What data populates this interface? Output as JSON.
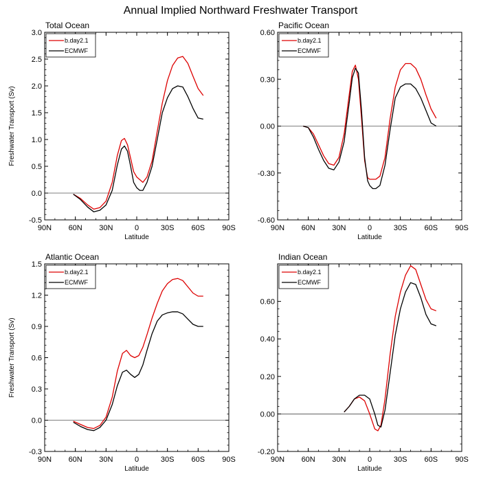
{
  "figure_title": "Annual Implied Northward Freshwater Transport",
  "colors": {
    "b.day2.1": "#dd0000",
    "ECMWF": "#000000"
  },
  "chart_data": [
    {
      "type": "line",
      "title": "Total Ocean",
      "xlabel": "Latitude",
      "ylabel": "Freshwater Transport (Sv)",
      "xticks": [
        "90N",
        "60N",
        "30N",
        "0",
        "30S",
        "60S",
        "90S"
      ],
      "yticks": [
        "-0.5",
        "0.0",
        "0.5",
        "1.0",
        "1.5",
        "2.0",
        "2.5",
        "3.0"
      ],
      "ylim": [
        -0.5,
        3.0
      ],
      "xlim": [
        -90,
        90
      ],
      "grid": false,
      "zero_line": true,
      "legend": "top-left",
      "x": [
        -62,
        -55,
        -48,
        -42,
        -36,
        -30,
        -24,
        -19,
        -15,
        -12,
        -9,
        -6,
        -3,
        0,
        3,
        6,
        10,
        15,
        20,
        25,
        30,
        35,
        40,
        45,
        50,
        55,
        60,
        65
      ],
      "series": [
        {
          "name": "b.day2.1",
          "values": [
            -0.02,
            -0.1,
            -0.22,
            -0.3,
            -0.27,
            -0.15,
            0.2,
            0.7,
            0.98,
            1.02,
            0.9,
            0.65,
            0.4,
            0.3,
            0.25,
            0.2,
            0.3,
            0.6,
            1.15,
            1.68,
            2.1,
            2.38,
            2.52,
            2.55,
            2.42,
            2.18,
            1.95,
            1.82
          ]
        },
        {
          "name": "ECMWF",
          "values": [
            -0.02,
            -0.12,
            -0.26,
            -0.35,
            -0.32,
            -0.22,
            0.05,
            0.52,
            0.82,
            0.88,
            0.78,
            0.5,
            0.2,
            0.1,
            0.05,
            0.05,
            0.2,
            0.5,
            1.0,
            1.5,
            1.78,
            1.95,
            2.0,
            1.98,
            1.8,
            1.58,
            1.4,
            1.38
          ]
        }
      ]
    },
    {
      "type": "line",
      "title": "Pacific Ocean",
      "xlabel": "Latitude",
      "ylabel": "",
      "xticks": [
        "90N",
        "60N",
        "30N",
        "0",
        "30S",
        "60S",
        "90S"
      ],
      "yticks": [
        "-0.60",
        "-0.30",
        "0.00",
        "0.30",
        "0.60"
      ],
      "ylim": [
        -0.6,
        0.6
      ],
      "xlim": [
        -90,
        90
      ],
      "grid": false,
      "zero_line": true,
      "legend": "top-left",
      "x": [
        -65,
        -60,
        -55,
        -50,
        -45,
        -40,
        -35,
        -30,
        -25,
        -20,
        -17,
        -14,
        -11,
        -8,
        -5,
        -2,
        0,
        3,
        6,
        10,
        15,
        20,
        25,
        30,
        35,
        40,
        45,
        50,
        55,
        60,
        65
      ],
      "series": [
        {
          "name": "b.day2.1",
          "values": [
            0.0,
            -0.01,
            -0.05,
            -0.12,
            -0.19,
            -0.24,
            -0.25,
            -0.2,
            -0.05,
            0.2,
            0.35,
            0.39,
            0.3,
            0.05,
            -0.22,
            -0.33,
            -0.34,
            -0.34,
            -0.34,
            -0.32,
            -0.2,
            0.05,
            0.25,
            0.36,
            0.4,
            0.4,
            0.37,
            0.3,
            0.2,
            0.11,
            0.05
          ]
        },
        {
          "name": "ECMWF",
          "values": [
            0.0,
            -0.01,
            -0.07,
            -0.15,
            -0.22,
            -0.27,
            -0.28,
            -0.23,
            -0.1,
            0.15,
            0.31,
            0.37,
            0.34,
            0.1,
            -0.2,
            -0.35,
            -0.38,
            -0.4,
            -0.4,
            -0.38,
            -0.25,
            -0.02,
            0.18,
            0.25,
            0.27,
            0.27,
            0.24,
            0.18,
            0.1,
            0.02,
            0.0
          ]
        }
      ]
    },
    {
      "type": "line",
      "title": "Atlantic Ocean",
      "xlabel": "Latitude",
      "ylabel": "Freshwater Transport (Sv)",
      "xticks": [
        "90N",
        "60N",
        "30N",
        "0",
        "30S",
        "60S",
        "90S"
      ],
      "yticks": [
        "-0.3",
        "0.0",
        "0.3",
        "0.6",
        "0.9",
        "1.2",
        "1.5"
      ],
      "ylim": [
        -0.3,
        1.5
      ],
      "xlim": [
        -90,
        90
      ],
      "grid": false,
      "zero_line": true,
      "legend": "top-left",
      "x": [
        -62,
        -55,
        -48,
        -42,
        -36,
        -30,
        -24,
        -19,
        -14,
        -10,
        -6,
        -2,
        2,
        6,
        10,
        15,
        20,
        25,
        30,
        35,
        40,
        45,
        50,
        55,
        60,
        65
      ],
      "series": [
        {
          "name": "b.day2.1",
          "values": [
            -0.01,
            -0.04,
            -0.07,
            -0.08,
            -0.05,
            0.03,
            0.22,
            0.47,
            0.64,
            0.67,
            0.62,
            0.6,
            0.62,
            0.7,
            0.82,
            0.98,
            1.12,
            1.24,
            1.31,
            1.35,
            1.36,
            1.34,
            1.28,
            1.22,
            1.19,
            1.19
          ]
        },
        {
          "name": "ECMWF",
          "values": [
            -0.02,
            -0.06,
            -0.09,
            -0.1,
            -0.07,
            0.0,
            0.15,
            0.33,
            0.46,
            0.48,
            0.44,
            0.41,
            0.44,
            0.53,
            0.67,
            0.83,
            0.95,
            1.01,
            1.03,
            1.04,
            1.04,
            1.02,
            0.97,
            0.92,
            0.9,
            0.9
          ]
        }
      ]
    },
    {
      "type": "line",
      "title": "Indian Ocean",
      "xlabel": "Latitude",
      "ylabel": "",
      "xticks": [
        "90N",
        "60N",
        "30N",
        "0",
        "30S",
        "60S",
        "90S"
      ],
      "yticks": [
        "-0.20",
        "0.00",
        "0.20",
        "0.40",
        "0.60"
      ],
      "ylim": [
        -0.2,
        0.8
      ],
      "xlim": [
        -90,
        90
      ],
      "grid": false,
      "zero_line": true,
      "legend": "top-left",
      "x": [
        -25,
        -20,
        -15,
        -10,
        -5,
        0,
        5,
        8,
        11,
        15,
        20,
        25,
        30,
        35,
        40,
        45,
        50,
        55,
        60,
        65
      ],
      "series": [
        {
          "name": "b.day2.1",
          "values": [
            0.01,
            0.04,
            0.08,
            0.09,
            0.07,
            0.0,
            -0.08,
            -0.09,
            -0.06,
            0.08,
            0.32,
            0.52,
            0.65,
            0.74,
            0.79,
            0.77,
            0.69,
            0.61,
            0.56,
            0.55
          ]
        },
        {
          "name": "ECMWF",
          "values": [
            0.01,
            0.04,
            0.08,
            0.1,
            0.1,
            0.08,
            0.0,
            -0.06,
            -0.07,
            0.02,
            0.22,
            0.42,
            0.56,
            0.65,
            0.7,
            0.69,
            0.62,
            0.53,
            0.48,
            0.47
          ]
        }
      ]
    }
  ]
}
